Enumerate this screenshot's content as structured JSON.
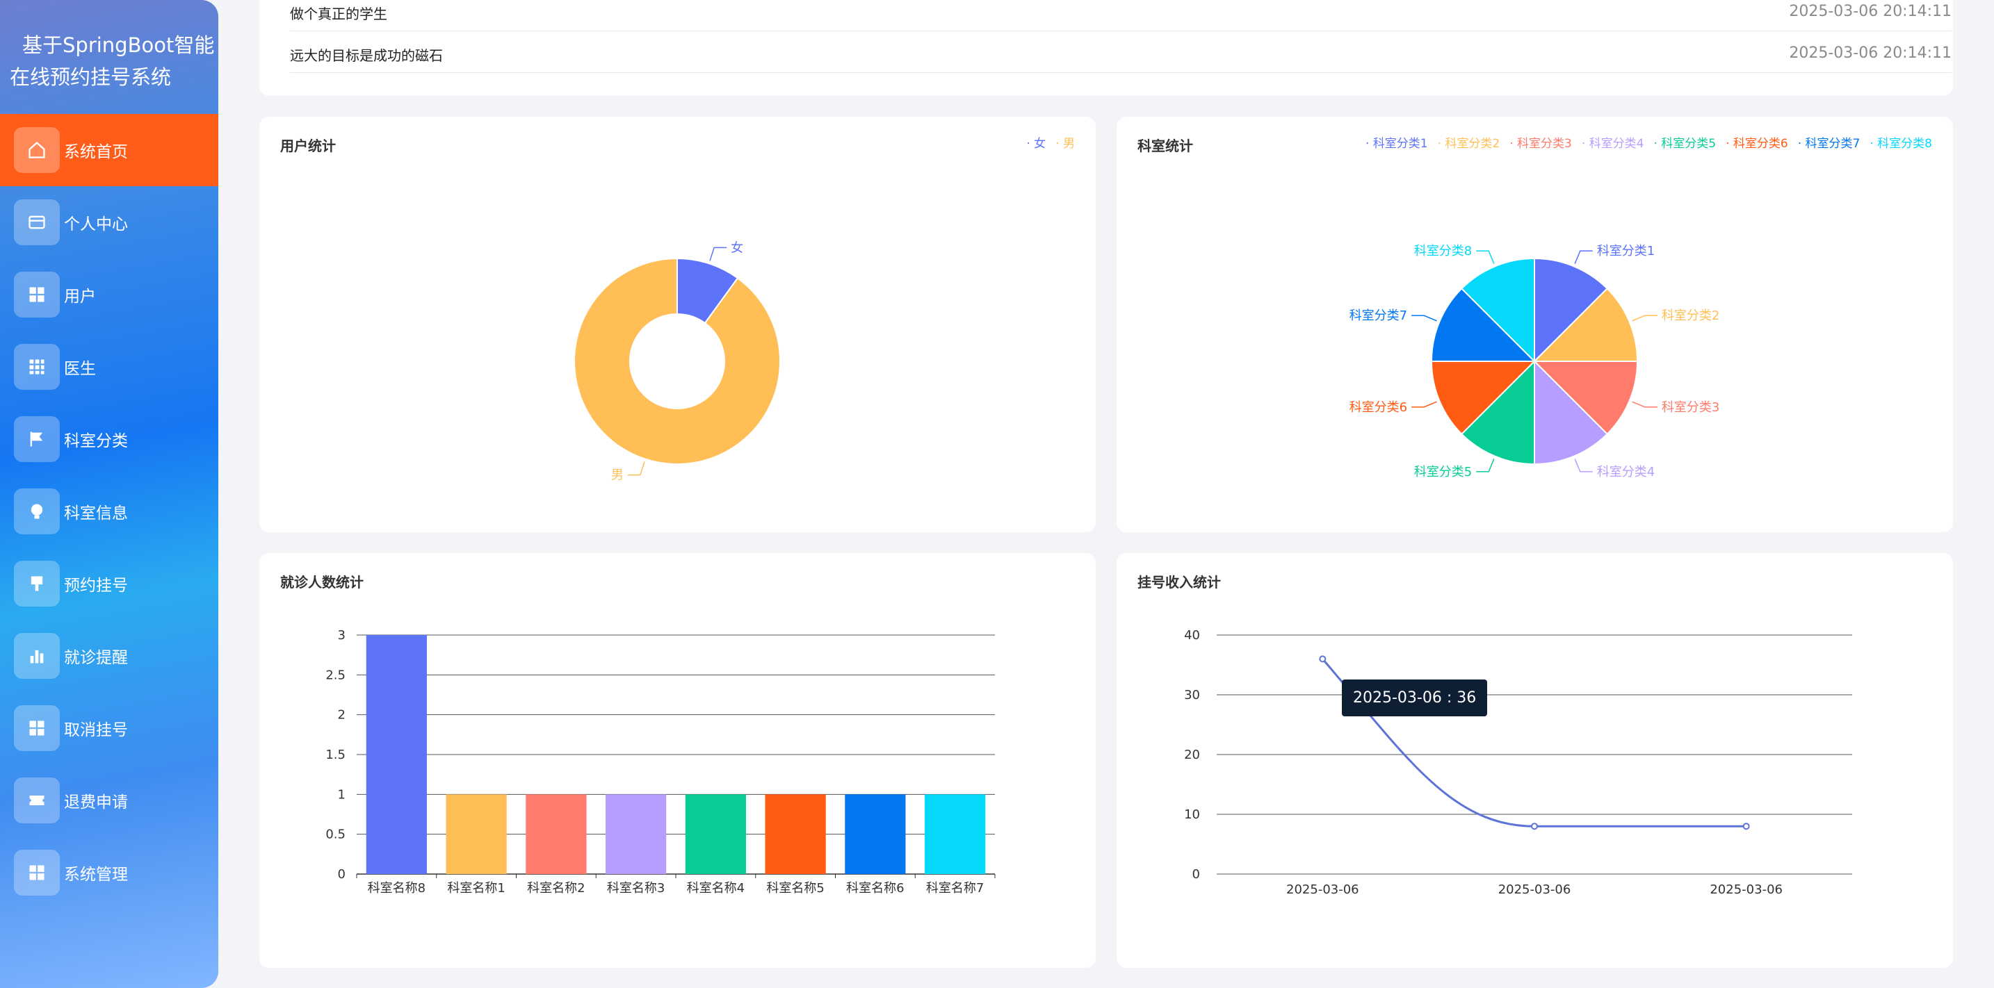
{
  "app": {
    "title": "基于SpringBoot智能在线预约挂号系统"
  },
  "sidebar": {
    "items": [
      {
        "label": "系统首页",
        "icon": "home-icon"
      },
      {
        "label": "个人中心",
        "icon": "card-icon"
      },
      {
        "label": "用户",
        "icon": "grid-icon"
      },
      {
        "label": "医生",
        "icon": "table-icon"
      },
      {
        "label": "科室分类",
        "icon": "flag-icon"
      },
      {
        "label": "科室信息",
        "icon": "bulb-icon"
      },
      {
        "label": "预约挂号",
        "icon": "stamp-icon"
      },
      {
        "label": "就诊提醒",
        "icon": "bar-chart-icon"
      },
      {
        "label": "取消挂号",
        "icon": "grid-icon"
      },
      {
        "label": "退费申请",
        "icon": "ticket-icon"
      },
      {
        "label": "系统管理",
        "icon": "grid-icon"
      }
    ]
  },
  "news": [
    {
      "title": "做个真正的学生",
      "date": "2025-03-06 20:14:11"
    },
    {
      "title": "远大的目标是成功的磁石",
      "date": "2025-03-06 20:14:11"
    }
  ],
  "colors": {
    "accent": "#ff5c1a",
    "palette": [
      "#5d73fa",
      "#ffbf56",
      "#ff7b6b",
      "#b79dff",
      "#08cc96",
      "#ff5b13",
      "#0277f2",
      "#04d9fb"
    ]
  },
  "user_stats": {
    "title": "用户统计",
    "chart_data": {
      "type": "pie",
      "donut": true,
      "categories": [
        "女",
        "男"
      ],
      "values": [
        1,
        9
      ],
      "legend": "top-right"
    }
  },
  "dept_stats": {
    "title": "科室统计",
    "chart_data": {
      "type": "pie",
      "categories": [
        "科室分类1",
        "科室分类2",
        "科室分类3",
        "科室分类4",
        "科室分类5",
        "科室分类6",
        "科室分类7",
        "科室分类8"
      ],
      "values": [
        1,
        1,
        1,
        1,
        1,
        1,
        1,
        1
      ],
      "legend": "top-right"
    }
  },
  "visit_stats": {
    "title": "就诊人数统计",
    "chart_data": {
      "type": "bar",
      "categories": [
        "科室名称8",
        "科室名称1",
        "科室名称2",
        "科室名称3",
        "科室名称4",
        "科室名称5",
        "科室名称6",
        "科室名称7"
      ],
      "values": [
        3,
        1,
        1,
        1,
        1,
        1,
        1,
        1
      ],
      "yticks": [
        "0",
        "0.5",
        "1",
        "1.5",
        "2",
        "2.5",
        "3"
      ],
      "ylim": [
        0,
        3
      ],
      "grid": true
    }
  },
  "income_stats": {
    "title": "挂号收入统计",
    "chart_data": {
      "type": "line",
      "x": [
        "2025-03-06",
        "2025-03-06",
        "2025-03-06"
      ],
      "values": [
        36,
        8,
        8
      ],
      "yticks": [
        "0",
        "10",
        "20",
        "30",
        "40"
      ],
      "ylim": [
        0,
        40
      ],
      "grid": true,
      "tooltip": "2025-03-06 : 36"
    }
  }
}
